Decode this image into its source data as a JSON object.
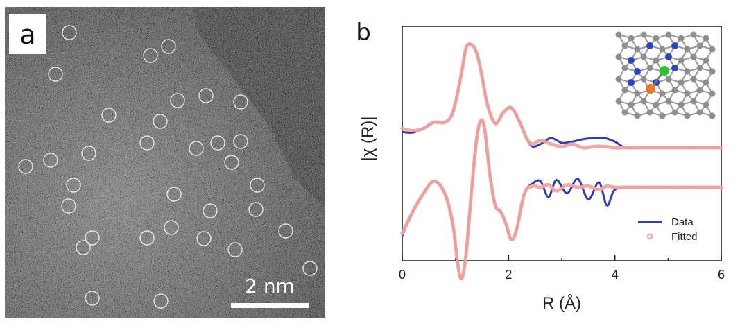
{
  "panel_a": {
    "label": "a",
    "scale_bar_label": "2 nm"
  },
  "panel_b": {
    "label": "b"
  },
  "colors": {
    "data": "#2f3fae",
    "fitted": "#f2a49e",
    "carbon": "#8e8e8e",
    "nitrogen": "#2846c4",
    "metal_green": "#2ec22e",
    "metal_orange": "#e8792e"
  },
  "chart_data": {
    "type": "line",
    "title": "",
    "xlabel": "R (Å)",
    "ylabel": "|χ (R)|",
    "xlim": [
      0,
      6
    ],
    "xticks": [
      "0",
      "2",
      "4",
      "6"
    ],
    "legend_position": "bottom-right",
    "legend": [
      "Data",
      "Fitted"
    ],
    "series": [
      {
        "name": "Data",
        "curve": "upper",
        "x": [
          0,
          0.2,
          0.4,
          0.6,
          0.8,
          0.95,
          1.1,
          1.2,
          1.3,
          1.4,
          1.5,
          1.6,
          1.75,
          1.9,
          2.05,
          2.2,
          2.35,
          2.45,
          2.6,
          2.8,
          3.0,
          3.2,
          3.4,
          3.6,
          3.8,
          4.0,
          4.2,
          4.5,
          5.0,
          5.5,
          6.0
        ],
        "y": [
          3.0,
          2.95,
          3.3,
          3.8,
          3.8,
          4.6,
          7.5,
          9.9,
          10.2,
          9.5,
          7.6,
          5.3,
          3.7,
          4.6,
          5.0,
          3.9,
          2.4,
          1.8,
          2.0,
          2.5,
          2.1,
          2.2,
          2.4,
          2.5,
          2.5,
          2.2,
          1.7,
          1.7,
          1.7,
          1.7,
          1.7
        ]
      },
      {
        "name": "Fitted",
        "curve": "upper",
        "x": [
          0,
          0.2,
          0.4,
          0.6,
          0.8,
          0.95,
          1.1,
          1.2,
          1.3,
          1.4,
          1.5,
          1.6,
          1.75,
          1.9,
          2.05,
          2.2,
          2.35,
          2.45,
          2.6,
          2.8,
          3.0,
          3.2,
          3.4,
          3.6,
          3.8,
          4.0,
          4.2,
          4.5,
          5.0,
          5.5,
          6.0
        ],
        "y": [
          3.3,
          3.1,
          3.3,
          3.8,
          3.8,
          4.6,
          7.5,
          9.9,
          10.2,
          9.5,
          7.6,
          5.3,
          3.7,
          4.6,
          5.0,
          3.9,
          2.4,
          2.0,
          2.3,
          2.0,
          1.8,
          2.0,
          1.7,
          1.8,
          1.8,
          1.7,
          1.7,
          1.7,
          1.7,
          1.7,
          1.7
        ]
      },
      {
        "name": "Data",
        "curve": "lower",
        "x": [
          0,
          0.2,
          0.4,
          0.6,
          0.8,
          0.95,
          1.05,
          1.12,
          1.2,
          1.3,
          1.4,
          1.48,
          1.55,
          1.65,
          1.75,
          1.85,
          1.95,
          2.05,
          2.15,
          2.3,
          2.45,
          2.6,
          2.75,
          2.9,
          3.1,
          3.3,
          3.5,
          3.7,
          3.85,
          4.0,
          4.3,
          5.0,
          6.0
        ],
        "y": [
          -4.0,
          -2.0,
          -0.5,
          0.5,
          -0.5,
          -3.0,
          -6.5,
          -7.5,
          -5.5,
          -0.5,
          4.0,
          5.5,
          4.8,
          1.0,
          -1.5,
          -2.0,
          -3.0,
          -4.3,
          -3.5,
          -0.5,
          0.3,
          0.5,
          -0.8,
          0.6,
          -0.5,
          0.7,
          -1.0,
          0.4,
          -1.5,
          -0.2,
          0.0,
          0.0,
          0.0
        ]
      },
      {
        "name": "Fitted",
        "curve": "lower",
        "x": [
          0,
          0.2,
          0.4,
          0.6,
          0.8,
          0.95,
          1.05,
          1.12,
          1.2,
          1.3,
          1.4,
          1.48,
          1.55,
          1.65,
          1.75,
          1.85,
          1.95,
          2.05,
          2.15,
          2.3,
          2.45,
          2.6,
          2.75,
          2.9,
          3.1,
          3.3,
          3.5,
          3.7,
          3.85,
          4.0,
          4.3,
          5.0,
          6.0
        ],
        "y": [
          -3.8,
          -2.0,
          -0.5,
          0.5,
          -0.5,
          -3.0,
          -6.5,
          -7.5,
          -5.5,
          -0.5,
          4.0,
          5.5,
          4.8,
          1.0,
          -1.5,
          -2.0,
          -3.0,
          -4.3,
          -3.5,
          -0.5,
          0.1,
          0.0,
          0.2,
          -0.3,
          0.2,
          0.0,
          0.1,
          -0.2,
          0.1,
          0.0,
          0.0,
          0.0,
          0.0
        ]
      }
    ]
  }
}
